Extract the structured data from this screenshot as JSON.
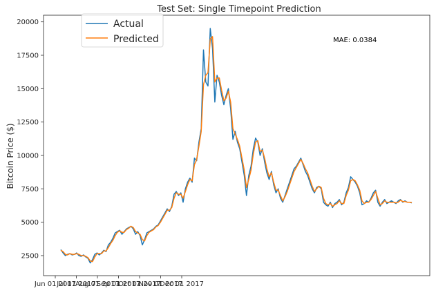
{
  "chart_data": {
    "type": "line",
    "title": "Test Set: Single Timepoint Prediction",
    "xlabel": "",
    "ylabel": "Bitcoin Price ($)",
    "ylim": [
      1000,
      20500
    ],
    "yticks": [
      2500,
      5000,
      7500,
      10000,
      12500,
      15000,
      17500,
      20000
    ],
    "ytick_labels": [
      "2500",
      "5000",
      "7500",
      "10000",
      "12500",
      "15000",
      "17500",
      "20000"
    ],
    "xtick_labels": [
      "Jun 01 2017",
      "Jul 01 2017",
      "Aug 01 2017",
      "Sep 01 2017",
      "Oct 01 2017",
      "Nov 01 2017",
      "Dec 01 2017"
    ],
    "legend": {
      "position": "top-left"
    },
    "annotation": "MAE: 0.0384",
    "grid": false,
    "colors": {
      "actual": "#1f77b4",
      "predicted": "#ff7f0e"
    },
    "series": [
      {
        "name": "Actual",
        "values": [
          2950,
          2700,
          2500,
          2600,
          2650,
          2550,
          2600,
          2700,
          2500,
          2450,
          2550,
          2400,
          2300,
          1950,
          2200,
          2600,
          2700,
          2550,
          2700,
          2900,
          2800,
          3300,
          3500,
          3800,
          4200,
          4300,
          4400,
          4100,
          4300,
          4500,
          4600,
          4700,
          4500,
          4100,
          4300,
          4000,
          3300,
          3700,
          4200,
          4300,
          4400,
          4500,
          4700,
          4800,
          5100,
          5400,
          5700,
          6000,
          5800,
          6200,
          7100,
          7300,
          7000,
          7200,
          6500,
          7500,
          8000,
          8300,
          8000,
          9800,
          9600,
          11000,
          12000,
          17900,
          15500,
          15200,
          19500,
          18000,
          14000,
          16000,
          15500,
          14500,
          13800,
          14500,
          15000,
          13500,
          11200,
          11800,
          11000,
          10500,
          9500,
          8500,
          7000,
          8500,
          9200,
          10500,
          11300,
          11000,
          10000,
          10500,
          9500,
          8700,
          8200,
          8800,
          7800,
          7200,
          7500,
          6800,
          6500,
          7000,
          7500,
          8000,
          8500,
          9000,
          9200,
          9500,
          9800,
          9300,
          8800,
          8500,
          8000,
          7500,
          7200,
          7600,
          7700,
          7500,
          6500,
          6300,
          6200,
          6500,
          6100,
          6400,
          6500,
          6700,
          6300,
          6500,
          7200,
          7600,
          8400,
          8200,
          8000,
          7700,
          7200,
          6300,
          6400,
          6600,
          6500,
          6800,
          7200,
          7400,
          6500,
          6200,
          6500,
          6700,
          6400,
          6500,
          6600,
          6500,
          6400,
          6600,
          6700,
          6500,
          6600,
          6500,
          6500,
          6450
        ]
      },
      {
        "name": "Predicted",
        "values": [
          2900,
          2800,
          2600,
          2550,
          2650,
          2600,
          2600,
          2650,
          2600,
          2500,
          2500,
          2450,
          2350,
          2100,
          2050,
          2400,
          2650,
          2650,
          2650,
          2850,
          2850,
          3100,
          3400,
          3650,
          4000,
          4250,
          4350,
          4250,
          4250,
          4450,
          4550,
          4700,
          4600,
          4300,
          4200,
          4100,
          3700,
          3600,
          4000,
          4250,
          4350,
          4450,
          4650,
          4750,
          5000,
          5300,
          5600,
          5900,
          5900,
          6100,
          6800,
          7200,
          7100,
          7100,
          6800,
          7300,
          7800,
          8200,
          8100,
          9300,
          9700,
          10700,
          11800,
          15300,
          16000,
          16200,
          18700,
          18900,
          15500,
          15800,
          15800,
          14900,
          14100,
          14300,
          14800,
          14000,
          12000,
          11600,
          11200,
          10700,
          9800,
          8900,
          7600,
          8200,
          8900,
          10100,
          11000,
          11100,
          10300,
          10400,
          9800,
          9000,
          8400,
          8700,
          8000,
          7400,
          7400,
          7000,
          6600,
          6900,
          7300,
          7800,
          8300,
          8800,
          9100,
          9400,
          9700,
          9400,
          9000,
          8700,
          8200,
          7700,
          7300,
          7500,
          7700,
          7600,
          6800,
          6400,
          6300,
          6400,
          6200,
          6300,
          6400,
          6600,
          6400,
          6400,
          7000,
          7400,
          8100,
          8200,
          8100,
          7800,
          7400,
          6600,
          6400,
          6500,
          6500,
          6700,
          7000,
          7300,
          6800,
          6300,
          6400,
          6600,
          6500,
          6500,
          6500,
          6500,
          6450,
          6500,
          6650,
          6550,
          6550,
          6500,
          6500,
          6480
        ]
      }
    ]
  }
}
